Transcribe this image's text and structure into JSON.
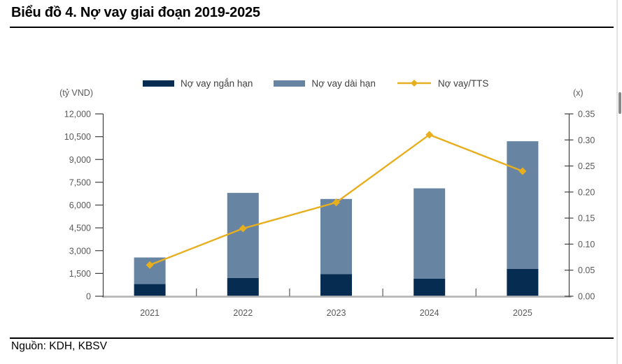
{
  "header": {
    "title": "Biểu đồ 4. Nợ vay giai đoạn 2019-2025"
  },
  "footer": {
    "source": "Nguồn: KDH, KBSV"
  },
  "colors": {
    "short_term_bar": "#072C52",
    "long_term_bar": "#6884A3",
    "ratio_line": "#E7AF1E",
    "value_axis": "#404040",
    "category_axis": "#B5B5B5",
    "tick_text": "#595959",
    "legend_text": "#404040"
  },
  "chart_data": {
    "type": "bar",
    "subtype": "stacked-bars-with-line-on-secondary-axis",
    "title": "Biểu đồ 4. Nợ vay giai đoạn 2019-2025",
    "categories": [
      "2021",
      "2022",
      "2023",
      "2024",
      "2025"
    ],
    "series": [
      {
        "name": "Nợ vay ngắn hạn",
        "type": "bar",
        "stacked": true,
        "axis": "left",
        "color": "#072C52",
        "values": [
          800,
          1200,
          1450,
          1150,
          1800
        ]
      },
      {
        "name": "Nợ vay dài hạn",
        "type": "bar",
        "stacked": true,
        "axis": "left",
        "color": "#6884A3",
        "values": [
          1750,
          5600,
          4950,
          5950,
          8400
        ]
      },
      {
        "name": "Nợ vay/TTS",
        "type": "line",
        "axis": "right",
        "color": "#E7AF1E",
        "values": [
          0.06,
          0.13,
          0.18,
          0.31,
          0.24
        ]
      }
    ],
    "stacked_totals": [
      2550,
      6800,
      6400,
      7100,
      10200
    ],
    "left_axis": {
      "title": "(tỷ VND)",
      "min": 0,
      "max": 12000,
      "step": 1500,
      "tick_labels": [
        "0",
        "1,500",
        "3,000",
        "4,500",
        "6,000",
        "7,500",
        "9,000",
        "10,500",
        "12,000"
      ]
    },
    "right_axis": {
      "title": "(x)",
      "min": 0,
      "max": 0.35,
      "step": 0.05,
      "tick_labels": [
        "0.00",
        "0.05",
        "0.10",
        "0.15",
        "0.20",
        "0.25",
        "0.30",
        "0.35"
      ]
    },
    "grid": false,
    "legend_position": "top"
  }
}
